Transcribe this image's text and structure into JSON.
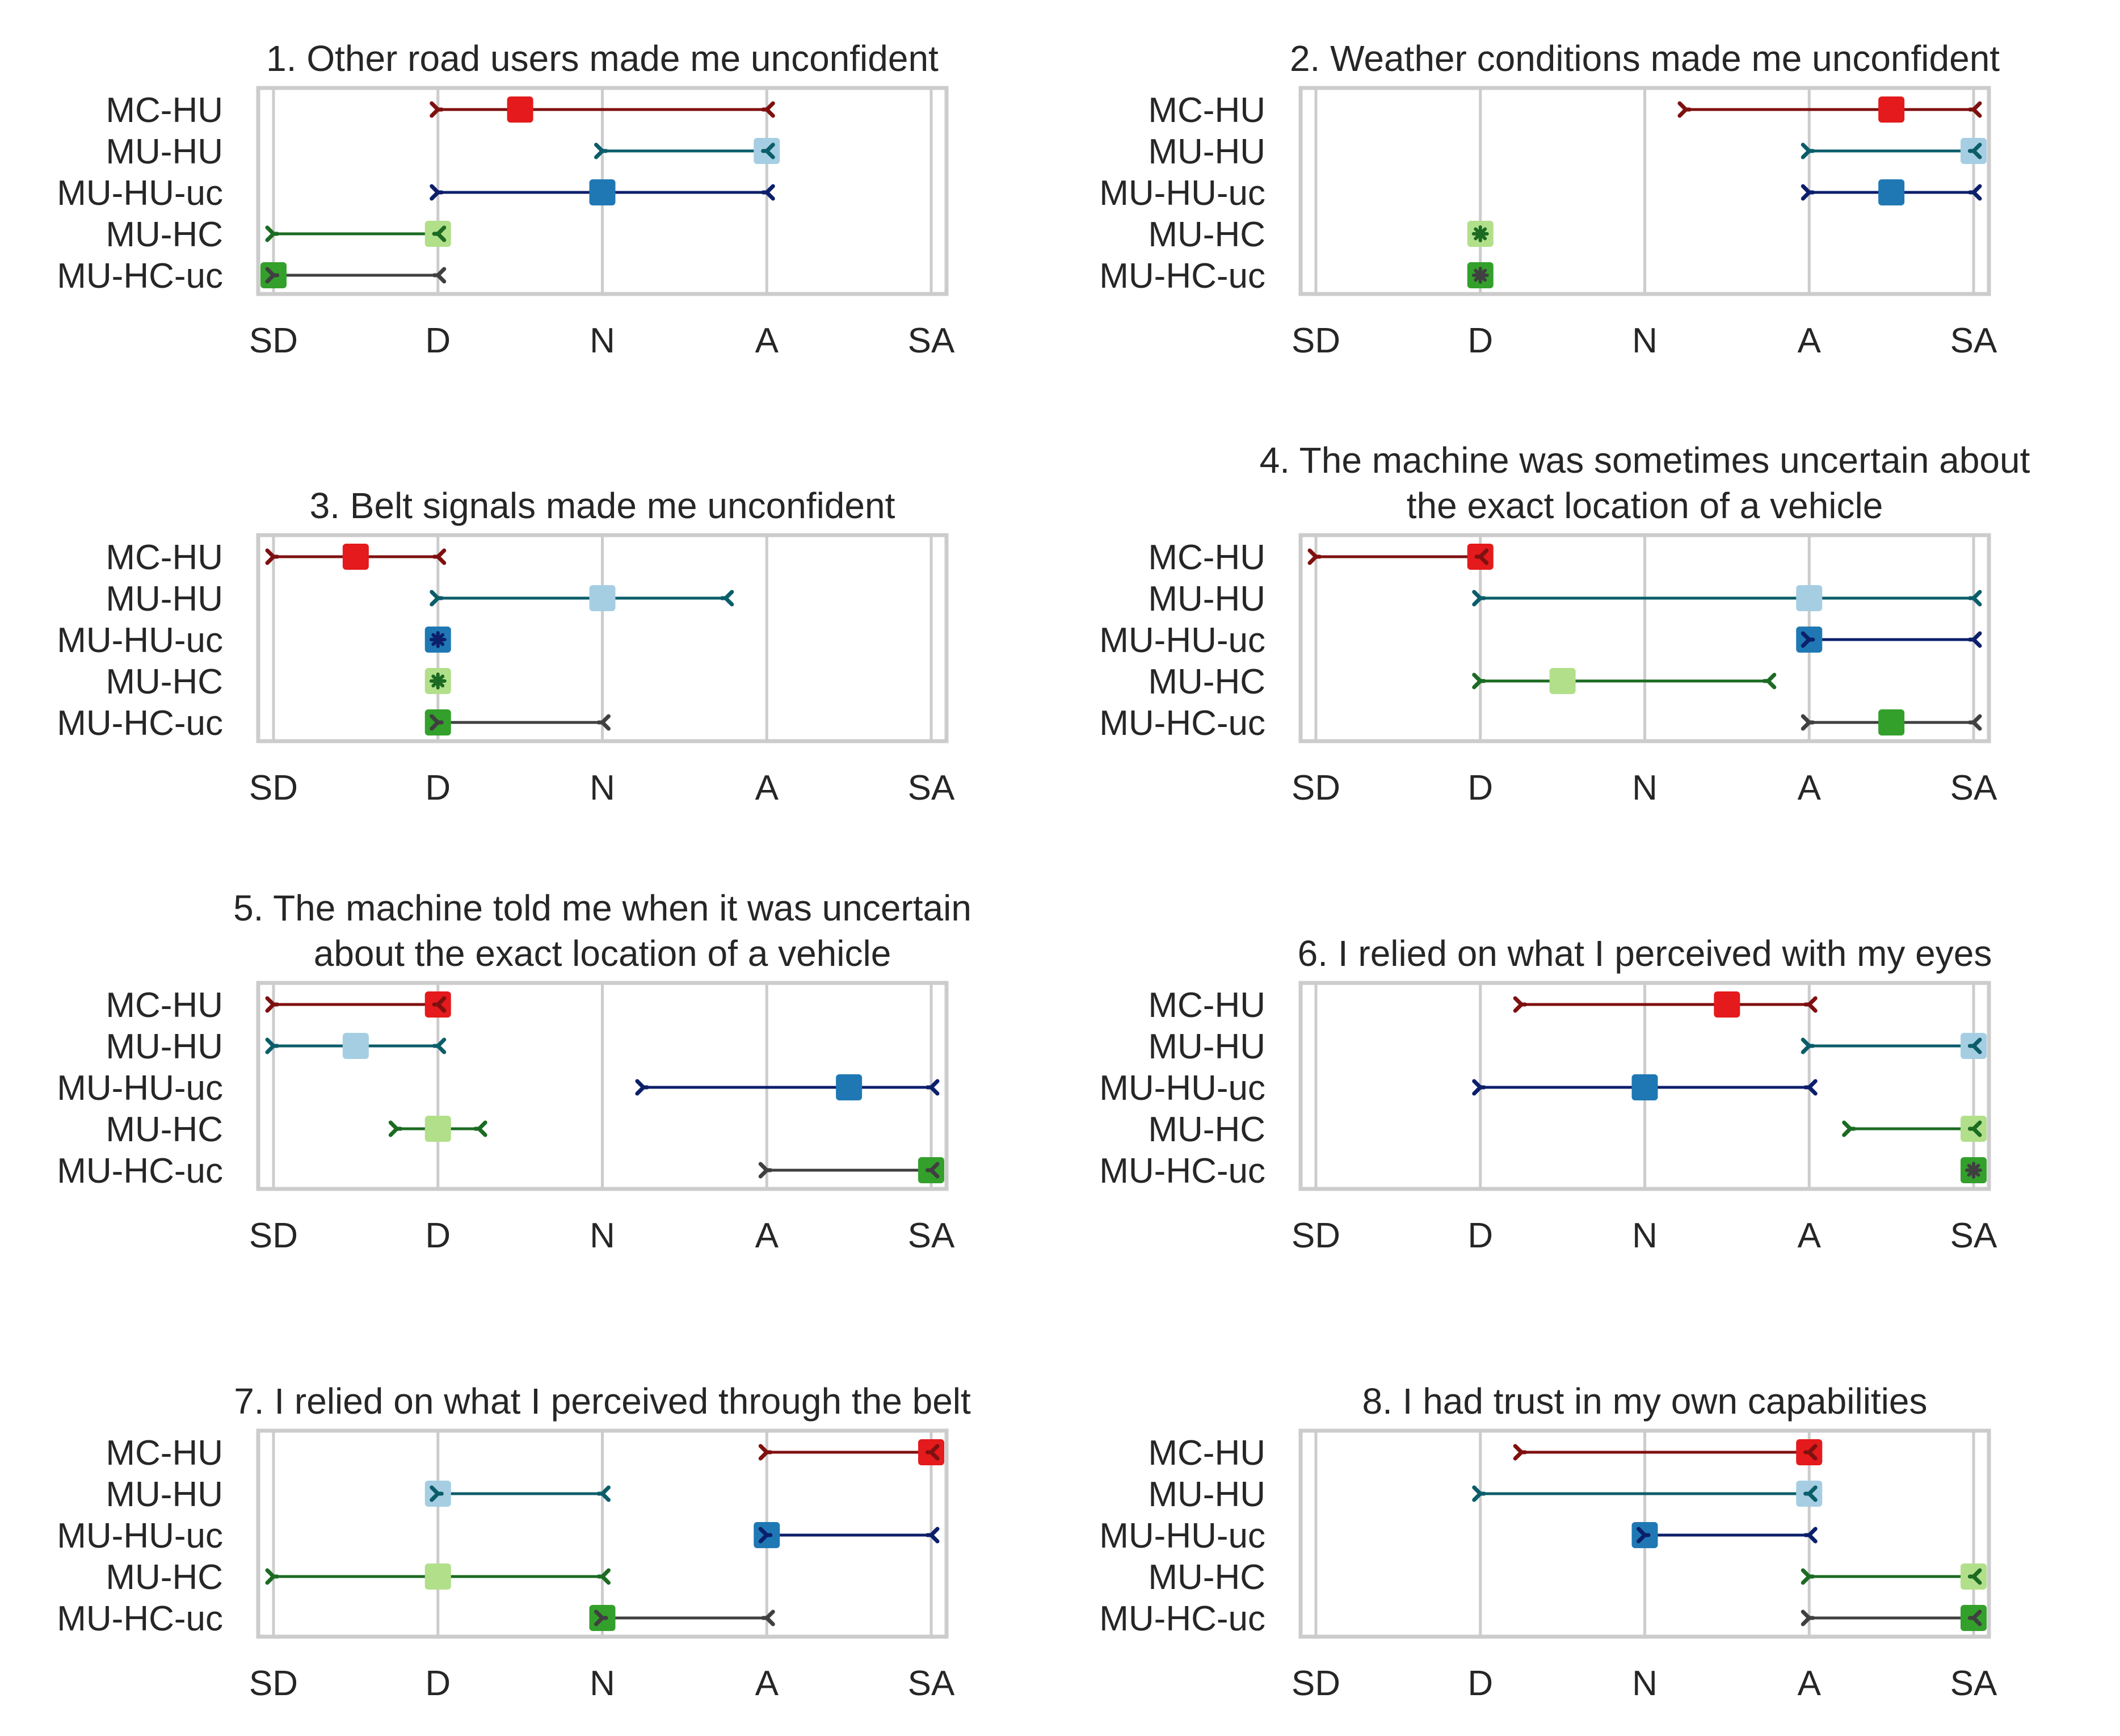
{
  "scale": [
    "SD",
    "D",
    "N",
    "A",
    "SA"
  ],
  "groups": [
    "MC-HU",
    "MU-HU",
    "MU-HU-uc",
    "MU-HC",
    "MU-HC-uc"
  ],
  "colors": {
    "MC-HU": {
      "line": "#7f1010",
      "square": "#e41a1c"
    },
    "MU-HU": {
      "line": "#0b5d6a",
      "square": "#a6cee3"
    },
    "MU-HU-uc": {
      "line": "#0c1f6b",
      "square": "#1f78b4"
    },
    "MU-HC": {
      "line": "#1b6b22",
      "square": "#b2df8a"
    },
    "MU-HC-uc": {
      "line": "#404040",
      "square": "#33a02c"
    }
  },
  "chart_data": [
    {
      "type": "range",
      "title": [
        "1. Other road users made me unconfident"
      ],
      "ranges": [
        [
          1,
          3,
          1.5
        ],
        [
          2,
          3,
          3
        ],
        [
          1,
          3,
          2
        ],
        [
          0,
          1,
          1
        ],
        [
          0,
          1,
          0
        ]
      ]
    },
    {
      "type": "range",
      "title": [
        "2. Weather conditions made me unconfident"
      ],
      "ranges": [
        [
          2.25,
          4,
          3.5
        ],
        [
          3,
          4,
          4
        ],
        [
          3,
          4,
          3.5
        ],
        [
          1,
          1,
          1
        ],
        [
          1,
          1,
          1
        ]
      ]
    },
    {
      "type": "range",
      "title": [
        "3. Belt signals made me unconfident"
      ],
      "ranges": [
        [
          0,
          1,
          0.5
        ],
        [
          1,
          2.75,
          2
        ],
        [
          1,
          1,
          1
        ],
        [
          1,
          1,
          1
        ],
        [
          1,
          2,
          1
        ]
      ]
    },
    {
      "type": "range",
      "title": [
        "4. The machine was sometimes uncertain about",
        "the exact location of a vehicle"
      ],
      "ranges": [
        [
          0,
          1,
          1
        ],
        [
          1,
          4,
          3
        ],
        [
          3,
          4,
          3
        ],
        [
          1,
          2.75,
          1.5
        ],
        [
          3,
          4,
          3.5
        ]
      ]
    },
    {
      "type": "range",
      "title": [
        "5. The machine told me when it was uncertain",
        "about the exact location of a vehicle"
      ],
      "ranges": [
        [
          0,
          1,
          1
        ],
        [
          0,
          1,
          0.5
        ],
        [
          2.25,
          4,
          3.5
        ],
        [
          0.75,
          1.25,
          1
        ],
        [
          3,
          4,
          4
        ]
      ]
    },
    {
      "type": "range",
      "title": [
        "6. I relied on what I perceived with my eyes"
      ],
      "ranges": [
        [
          1.25,
          3,
          2.5
        ],
        [
          3,
          4,
          4
        ],
        [
          1,
          3,
          2
        ],
        [
          3.25,
          4,
          4
        ],
        [
          4,
          4,
          4
        ]
      ]
    },
    {
      "type": "range",
      "title": [
        "7. I relied on what I perceived through the belt"
      ],
      "ranges": [
        [
          3,
          4,
          4
        ],
        [
          1,
          2,
          1
        ],
        [
          3,
          4,
          3
        ],
        [
          0,
          2,
          1
        ],
        [
          2,
          3,
          2
        ]
      ]
    },
    {
      "type": "range",
      "title": [
        "8. I had trust in my own capabilities"
      ],
      "ranges": [
        [
          1.25,
          3,
          3
        ],
        [
          1,
          3,
          3
        ],
        [
          2,
          3,
          2
        ],
        [
          3,
          4,
          4
        ],
        [
          3,
          4,
          4
        ]
      ]
    }
  ]
}
